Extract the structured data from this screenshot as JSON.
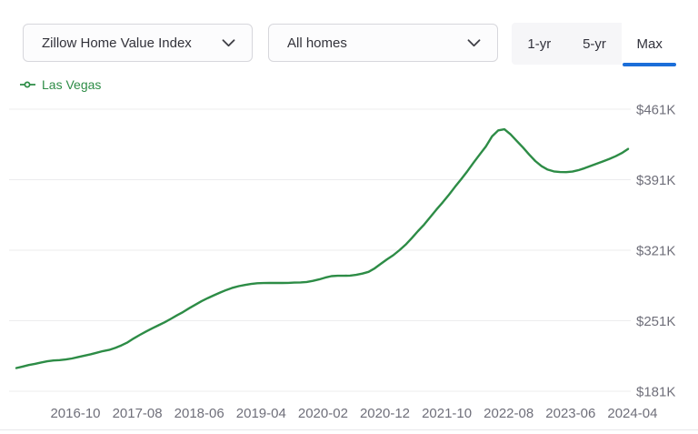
{
  "header": {
    "metric_dropdown": {
      "value": "Zillow Home Value Index"
    },
    "home_type_dropdown": {
      "value": "All homes"
    },
    "range_tabs": [
      {
        "label": "1-yr",
        "active": false
      },
      {
        "label": "5-yr",
        "active": false
      },
      {
        "label": "Max",
        "active": true
      }
    ],
    "active_tab_underline_color": "#1b6ed9"
  },
  "legend": {
    "label": "Las Vegas",
    "color": "#2d8c46"
  },
  "chart_data": {
    "type": "line",
    "title": "Zillow Home Value Index — Las Vegas — All homes — Max range",
    "legend_entries": [
      "Las Vegas"
    ],
    "grid": "horizontal",
    "legend_position": "top-left",
    "y_ticks": [
      "$461K",
      "$391K",
      "$321K",
      "$251K",
      "$181K"
    ],
    "y_tick_values_k": [
      461,
      391,
      321,
      251,
      181
    ],
    "ylim_k": [
      181,
      461
    ],
    "x_ticks": [
      "2016-10",
      "2017-08",
      "2018-06",
      "2019-04",
      "2020-02",
      "2020-12",
      "2021-10",
      "2022-08",
      "2023-06",
      "2024-04"
    ],
    "series": [
      {
        "name": "Las Vegas",
        "color": "#2d8c46",
        "interval": "monthly",
        "x_start": "2016-01",
        "x_end": "2024-04",
        "unit": "thousand USD",
        "values_k_usd": [
          204,
          205.5,
          207,
          208.2,
          209.5,
          210.7,
          211.5,
          211.9,
          212.5,
          213.5,
          215,
          216.3,
          217.7,
          219.2,
          220.8,
          222,
          224,
          226.5,
          229.5,
          233.5,
          237,
          240.3,
          243.5,
          246.5,
          249.5,
          252.8,
          256.3,
          259.7,
          263.5,
          267,
          270.5,
          273.5,
          276.3,
          279,
          281.5,
          283.7,
          285.3,
          286.5,
          287.5,
          288.2,
          288.4,
          288.5,
          288.5,
          288.5,
          288.6,
          288.8,
          289,
          289.5,
          290.6,
          292,
          293.8,
          295.3,
          295.6,
          295.6,
          295.8,
          296.5,
          297.8,
          299.5,
          303,
          307.5,
          312,
          316,
          321,
          326.5,
          333,
          340,
          346.5,
          354,
          361.5,
          368.5,
          376,
          384,
          391.5,
          399.5,
          408,
          416,
          424,
          434,
          440,
          441,
          436,
          429.5,
          423,
          416,
          409.5,
          404.5,
          401,
          399.2,
          398.6,
          398.5,
          399,
          400.5,
          402.5,
          404.7,
          407,
          409.3,
          411.7,
          414.3,
          417.5,
          421.5
        ]
      }
    ]
  },
  "colors": {
    "line_green": "#2d8c46",
    "tab_underline_blue": "#1b6ed9",
    "axis_label_gray": "#6f6f7a",
    "gridline_gray": "#ececee",
    "control_border": "#d7d7dc"
  }
}
